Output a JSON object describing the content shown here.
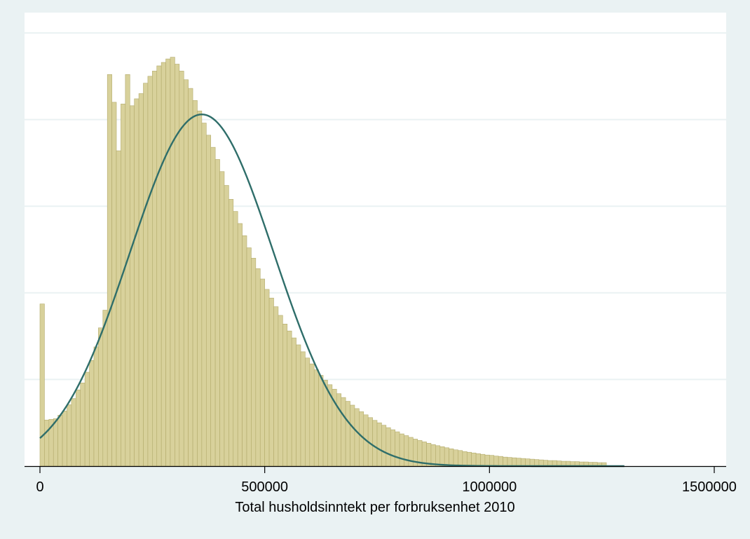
{
  "chart_data": {
    "type": "bar",
    "subtype": "histogram-with-normal-density-overlay",
    "xlabel": "Total husholdsinntekt per forbruksenhet 2010",
    "ylabel": "",
    "title": "",
    "xlim": [
      0,
      1500000
    ],
    "x_ticks": [
      0,
      500000,
      1000000,
      1500000
    ],
    "x_tick_labels": [
      "0",
      "500000",
      "1000000",
      "1500000"
    ],
    "y_ticks_shown": false,
    "y_gridline_levels": [
      0.25,
      0.5,
      0.75,
      1.0,
      1.25
    ],
    "grid": "horizontal",
    "bin_width": 10000,
    "bin_start": 0,
    "values": [
      0.468,
      0.133,
      0.135,
      0.137,
      0.147,
      0.159,
      0.177,
      0.195,
      0.22,
      0.24,
      0.271,
      0.305,
      0.344,
      0.399,
      0.45,
      1.13,
      1.05,
      0.91,
      1.045,
      1.13,
      1.04,
      1.06,
      1.075,
      1.105,
      1.125,
      1.14,
      1.155,
      1.165,
      1.175,
      1.18,
      1.16,
      1.14,
      1.115,
      1.09,
      1.055,
      1.025,
      0.99,
      0.955,
      0.92,
      0.885,
      0.85,
      0.81,
      0.77,
      0.735,
      0.7,
      0.665,
      0.63,
      0.6,
      0.57,
      0.54,
      0.51,
      0.485,
      0.46,
      0.435,
      0.41,
      0.39,
      0.37,
      0.35,
      0.33,
      0.312,
      0.295,
      0.278,
      0.262,
      0.248,
      0.235,
      0.222,
      0.209,
      0.198,
      0.187,
      0.176,
      0.166,
      0.157,
      0.148,
      0.14,
      0.132,
      0.125,
      0.118,
      0.111,
      0.105,
      0.099,
      0.093,
      0.088,
      0.083,
      0.078,
      0.074,
      0.07,
      0.066,
      0.062,
      0.059,
      0.056,
      0.053,
      0.05,
      0.047,
      0.045,
      0.042,
      0.04,
      0.038,
      0.036,
      0.034,
      0.032,
      0.031,
      0.029,
      0.028,
      0.026,
      0.025,
      0.024,
      0.023,
      0.022,
      0.021,
      0.02,
      0.019,
      0.018,
      0.017,
      0.016,
      0.016,
      0.015,
      0.014,
      0.014,
      0.013,
      0.013,
      0.012,
      0.012,
      0.011,
      0.011,
      0.01,
      0.01
    ],
    "normal_curve": {
      "mean": 360000,
      "sd": 160000,
      "peak_density": 1.015
    },
    "colors": {
      "background": "#eaf2f3",
      "plot_area": "#ffffff",
      "gridline": "#eaf2f3",
      "bar_fill": "#d8d19b",
      "bar_stroke": "#b3ab6c",
      "curve": "#2f6e6a",
      "axis": "#000000"
    }
  }
}
